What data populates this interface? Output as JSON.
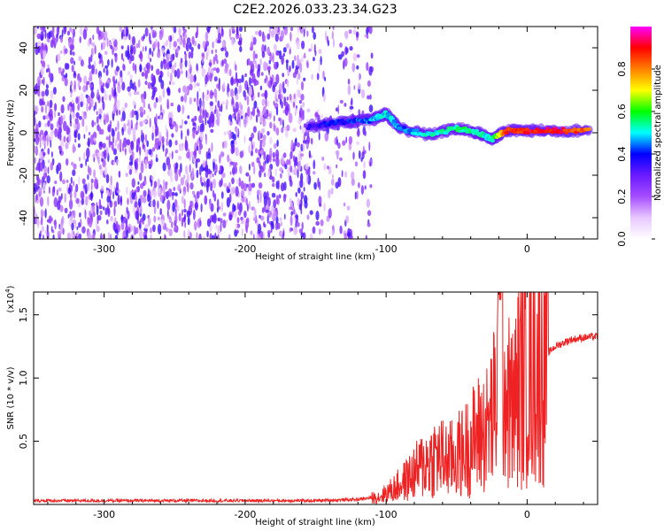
{
  "title": "C2E2.2026.033.23.34.G23",
  "chart_data": [
    {
      "type": "heatmap",
      "xlabel": "Height of straight line (km)",
      "ylabel": "Frequency (Hz)",
      "xlim": [
        -350,
        50
      ],
      "ylim": [
        -50,
        50
      ],
      "xticks": [
        -300,
        -200,
        -100,
        0
      ],
      "yticks": [
        -40,
        -20,
        0,
        20,
        40
      ],
      "colorbar": {
        "label": "Normalized spectral amplitude",
        "range": [
          0,
          1
        ],
        "ticks": [
          "0.0",
          "0.2",
          "0.4",
          "0.6",
          "0.8"
        ],
        "colors": [
          "#ffffff",
          "#e8c8ff",
          "#a64dff",
          "#6a1bff",
          "#0000ff",
          "#00ffff",
          "#00ff00",
          "#ffff00",
          "#ff8000",
          "#ff0000",
          "#ff00ff"
        ]
      },
      "signal_track": [
        {
          "x": -155,
          "y": 3,
          "amplitude": 0.35
        },
        {
          "x": -130,
          "y": 5,
          "amplitude": 0.4
        },
        {
          "x": -110,
          "y": 6,
          "amplitude": 0.45
        },
        {
          "x": -100,
          "y": 9,
          "amplitude": 0.5
        },
        {
          "x": -90,
          "y": 2,
          "amplitude": 0.45
        },
        {
          "x": -70,
          "y": -1,
          "amplitude": 0.5
        },
        {
          "x": -50,
          "y": 2,
          "amplitude": 0.55
        },
        {
          "x": -35,
          "y": 0,
          "amplitude": 0.55
        },
        {
          "x": -25,
          "y": -3,
          "amplitude": 0.5
        },
        {
          "x": -15,
          "y": 1,
          "amplitude": 0.85
        },
        {
          "x": 0,
          "y": 1,
          "amplitude": 0.9
        },
        {
          "x": 20,
          "y": 1,
          "amplitude": 0.9
        },
        {
          "x": 45,
          "y": 1,
          "amplitude": 0.8
        }
      ]
    },
    {
      "type": "line",
      "xlabel": "Height of straight line (km)",
      "ylabel": "SNR (10 * v/v)",
      "yscale_label": "(x10",
      "yscale_exp": "4",
      "yscale_close": ")",
      "xlim": [
        -350,
        50
      ],
      "ylim": [
        0,
        1.68
      ],
      "xticks": [
        -300,
        -200,
        -100,
        0
      ],
      "yticks": [
        "0.5",
        "1.0",
        "1.5"
      ],
      "line_color": "#ee2222",
      "series": [
        {
          "x": [
            -350,
            -300,
            -250,
            -200,
            -150,
            -120,
            -105,
            -95,
            -85,
            -75,
            -65,
            -55,
            -45,
            -35,
            -28,
            -22,
            -19,
            -15,
            -10,
            -5,
            0,
            5,
            10,
            20,
            30,
            40,
            50
          ],
          "y": [
            0.03,
            0.03,
            0.03,
            0.03,
            0.03,
            0.04,
            0.06,
            0.12,
            0.2,
            0.3,
            0.38,
            0.35,
            0.42,
            0.55,
            0.6,
            0.8,
            1.55,
            0.85,
            0.75,
            1.0,
            1.05,
            1.1,
            1.15,
            1.25,
            1.3,
            1.32,
            1.33
          ]
        }
      ]
    }
  ]
}
